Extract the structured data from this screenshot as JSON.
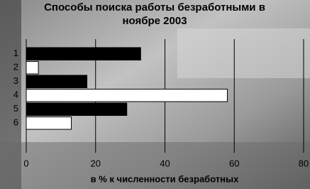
{
  "chart_data": {
    "type": "hbar",
    "title": "Способы поиска работы безработными в ноябре 2003",
    "xlabel": "в % к численности безработных",
    "categories": [
      "1",
      "2",
      "3",
      "4",
      "5",
      "6"
    ],
    "values": [
      33,
      3.5,
      17.5,
      58,
      29,
      13
    ],
    "colors": [
      "#000000",
      "#ffffff",
      "#000000",
      "#ffffff",
      "#000000",
      "#ffffff"
    ],
    "xlim": [
      0,
      80
    ],
    "xticks": [
      0,
      20,
      40,
      60,
      80
    ],
    "grid": true
  }
}
